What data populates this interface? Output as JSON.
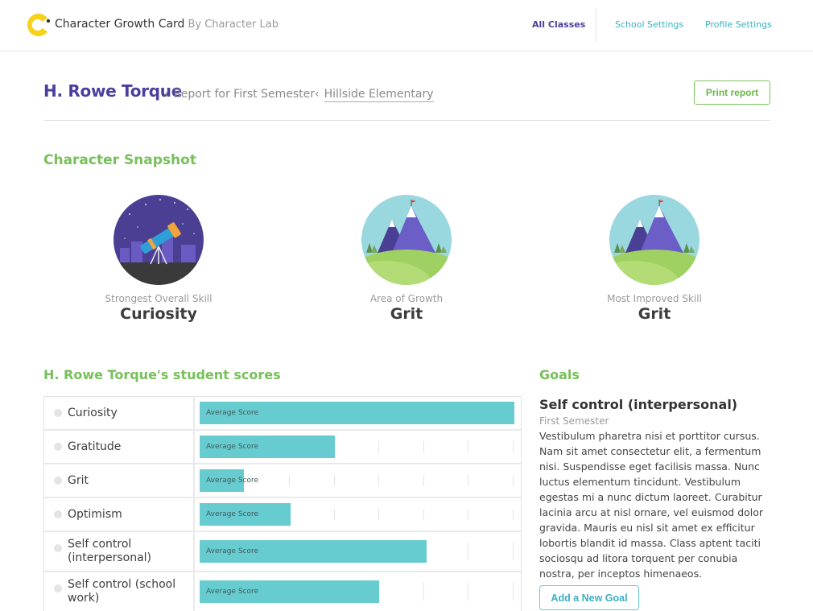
{
  "header": {
    "brand_name": "Character Growth Card",
    "brand_by": "By Character Lab",
    "nav": {
      "all_classes": "All Classes",
      "school_settings": "School Settings",
      "profile_settings": "Profile Settings"
    },
    "colors": {
      "logo_yellow": "#f6d21a",
      "nav_active": "#4a3f9f",
      "nav_link": "#3ab0c4"
    }
  },
  "report": {
    "student_name": "H. Rowe Torque",
    "breadcrumb": [
      "Report for First Semester",
      "Hillside Elementary"
    ],
    "print_label": "Print report"
  },
  "snapshot": {
    "title": "Character Snapshot",
    "cards": [
      {
        "caption": "Strongest Overall Skill",
        "value": "Curiosity",
        "illustration": "telescope-night-illustration"
      },
      {
        "caption": "Area of Growth",
        "value": "Grit",
        "illustration": "mountain-illustration"
      },
      {
        "caption": "Most Improved Skill",
        "value": "Grit",
        "illustration": "mountain-illustration"
      }
    ]
  },
  "scores": {
    "title": "H. Rowe Torque's student scores",
    "bar_label": "Average Score",
    "bar_color": "#67ccd0",
    "rows": [
      {
        "skill": "Curiosity",
        "average_fraction": 1.0
      },
      {
        "skill": "Gratitude",
        "average_fraction": 0.43
      },
      {
        "skill": "Grit",
        "average_fraction": 0.14
      },
      {
        "skill": "Optimism",
        "average_fraction": 0.29
      },
      {
        "skill": "Self control (interpersonal)",
        "average_fraction": 0.72
      },
      {
        "skill": "Self control (school work)",
        "average_fraction": 0.57
      }
    ]
  },
  "goals": {
    "title": "Goals",
    "name": "Self control (interpersonal)",
    "term": "First Semester",
    "description": "Vestibulum pharetra nisi et porttitor cursus. Nam sit amet consectetur elit, a fermentum nisi. Suspendisse eget facilisis massa. Nunc luctus elementum tincidunt. Vestibulum egestas mi a nunc dictum laoreet. Curabitur lacinia arcu at nisl ornare, vel euismod dolor gravida. Mauris eu nisl sit amet ex efficitur lobortis blandit id massa. Class aptent taciti sociosqu ad litora torquent per conubia nostra, per inceptos himenaeos.",
    "add_label": "Add a New Goal"
  }
}
